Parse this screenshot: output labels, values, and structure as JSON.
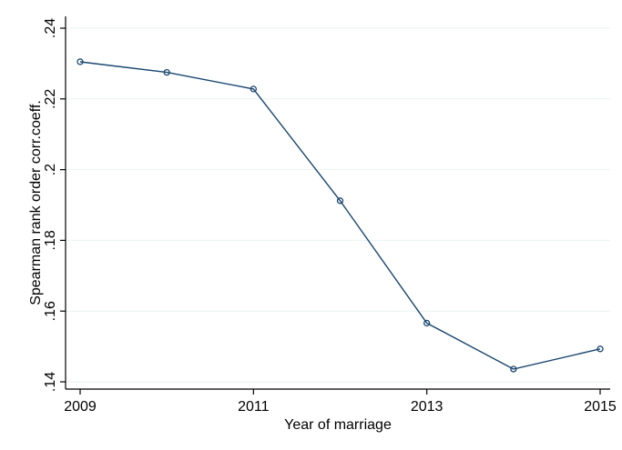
{
  "chart_data": {
    "type": "line",
    "title": "",
    "xlabel": "Year of marriage",
    "ylabel": "Spearman rank order corr.coeff.",
    "xlim": [
      2009,
      2015
    ],
    "ylim": [
      0.14,
      0.24
    ],
    "x_ticks": [
      2009,
      2011,
      2013,
      2015
    ],
    "x_tick_labels": [
      "2009",
      "2011",
      "2013",
      "2015"
    ],
    "y_ticks": [
      0.14,
      0.16,
      0.18,
      0.2,
      0.22,
      0.24
    ],
    "y_tick_labels": [
      ".14",
      ".16",
      ".18",
      ".2",
      ".22",
      ".24"
    ],
    "grid": true,
    "line_color": "#1a476f",
    "series": [
      {
        "x": [
          2009,
          2010,
          2011,
          2012,
          2013,
          2014,
          2015
        ],
        "y": [
          0.2305,
          0.2275,
          0.2228,
          0.1912,
          0.1566,
          0.1436,
          0.1493
        ]
      }
    ]
  }
}
